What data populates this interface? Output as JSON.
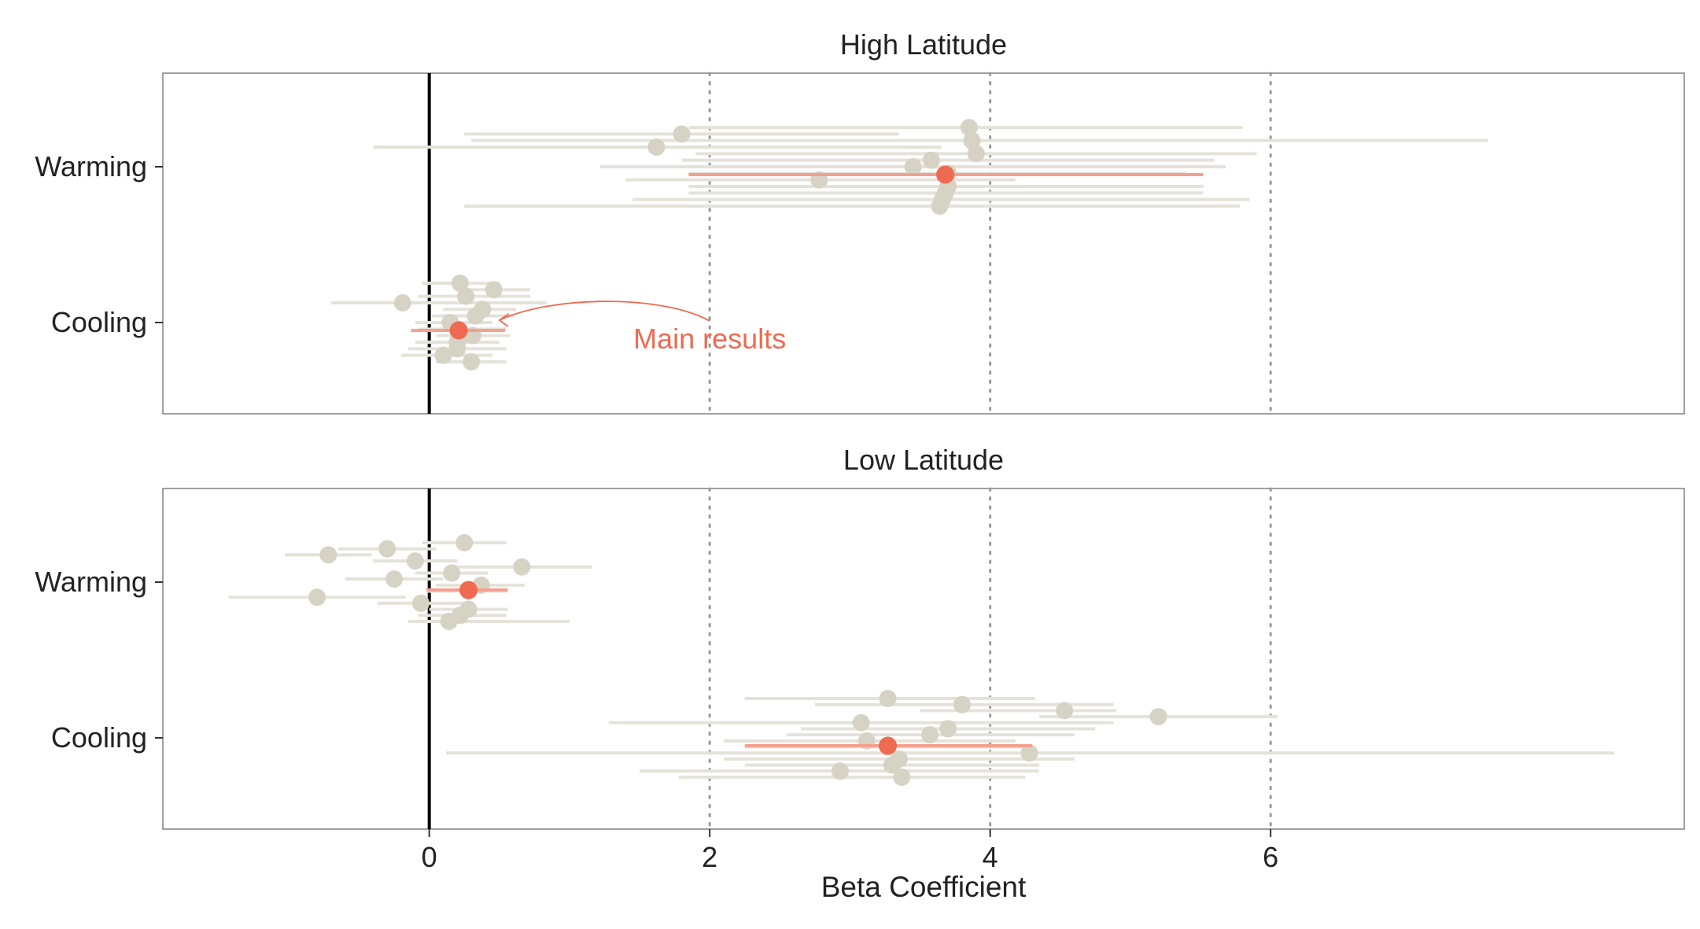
{
  "chart_data": {
    "type": "forest",
    "xlabel": "Beta Coefficient",
    "x_ticks": [
      0,
      2,
      4,
      6
    ],
    "x_range": [
      -1.9,
      8.95
    ],
    "reference_line": 0,
    "grid_lines": [
      2,
      4,
      6
    ],
    "categories": [
      "Warming",
      "Cooling"
    ],
    "annotation": {
      "text": "Main results",
      "color": "#ee6a50",
      "panel": "High Latitude",
      "category": "Cooling"
    },
    "colors": {
      "main": "#ee6a50",
      "main_line": "#f4a090",
      "robustness_point": "#d6d3c4",
      "robustness_line": "#e5e2d9",
      "zero_line": "#000000",
      "grid": "#999999",
      "frame": "#888888"
    },
    "panels": [
      {
        "title": "High Latitude",
        "groups": [
          {
            "category": "Warming",
            "main": {
              "estimate": 3.68,
              "lower": 1.85,
              "upper": 5.52
            },
            "estimates": [
              {
                "estimate": 3.85,
                "lower": 1.85,
                "upper": 5.8
              },
              {
                "estimate": 1.8,
                "lower": 0.25,
                "upper": 3.35
              },
              {
                "estimate": 3.87,
                "lower": 0.3,
                "upper": 7.55
              },
              {
                "estimate": 1.62,
                "lower": -0.4,
                "upper": 3.65
              },
              {
                "estimate": 3.9,
                "lower": 1.9,
                "upper": 5.9
              },
              {
                "estimate": 3.58,
                "lower": 1.8,
                "upper": 5.6
              },
              {
                "estimate": 3.45,
                "lower": 1.22,
                "upper": 5.68
              },
              {
                "estimate": 3.7,
                "lower": 1.85,
                "upper": 5.4
              },
              {
                "estimate": 2.78,
                "lower": 1.4,
                "upper": 4.18
              },
              {
                "estimate": 3.7,
                "lower": 1.85,
                "upper": 5.52
              },
              {
                "estimate": 3.68,
                "lower": 1.85,
                "upper": 5.52
              },
              {
                "estimate": 3.66,
                "lower": 1.45,
                "upper": 5.85
              },
              {
                "estimate": 3.64,
                "lower": 0.25,
                "upper": 5.78
              }
            ]
          },
          {
            "category": "Cooling",
            "main": {
              "estimate": 0.21,
              "lower": -0.13,
              "upper": 0.54
            },
            "estimates": [
              {
                "estimate": 0.22,
                "lower": -0.05,
                "upper": 0.5
              },
              {
                "estimate": 0.46,
                "lower": 0.2,
                "upper": 0.72
              },
              {
                "estimate": 0.26,
                "lower": -0.08,
                "upper": 0.72
              },
              {
                "estimate": -0.19,
                "lower": -0.7,
                "upper": 0.84
              },
              {
                "estimate": 0.38,
                "lower": 0.1,
                "upper": 0.62
              },
              {
                "estimate": 0.33,
                "lower": 0.02,
                "upper": 0.6
              },
              {
                "estimate": 0.15,
                "lower": -0.1,
                "upper": 0.45
              },
              {
                "estimate": 0.2,
                "lower": -0.08,
                "upper": 0.55
              },
              {
                "estimate": 0.31,
                "lower": 0.05,
                "upper": 0.58
              },
              {
                "estimate": 0.2,
                "lower": -0.1,
                "upper": 0.5
              },
              {
                "estimate": 0.2,
                "lower": -0.15,
                "upper": 0.55
              },
              {
                "estimate": 0.1,
                "lower": -0.2,
                "upper": 0.45
              },
              {
                "estimate": 0.3,
                "lower": 0.05,
                "upper": 0.55
              }
            ]
          }
        ]
      },
      {
        "title": "Low Latitude",
        "groups": [
          {
            "category": "Warming",
            "main": {
              "estimate": 0.28,
              "lower": -0.02,
              "upper": 0.56
            },
            "estimates": [
              {
                "estimate": 0.25,
                "lower": -0.05,
                "upper": 0.55
              },
              {
                "estimate": -0.3,
                "lower": -0.65,
                "upper": 0.05
              },
              {
                "estimate": -0.72,
                "lower": -1.03,
                "upper": -0.41
              },
              {
                "estimate": -0.1,
                "lower": -0.4,
                "upper": 0.2
              },
              {
                "estimate": 0.66,
                "lower": 0.15,
                "upper": 1.16
              },
              {
                "estimate": 0.16,
                "lower": -0.1,
                "upper": 0.42
              },
              {
                "estimate": -0.25,
                "lower": -0.6,
                "upper": 0.1
              },
              {
                "estimate": 0.37,
                "lower": 0.05,
                "upper": 0.68
              },
              {
                "estimate": 0.28,
                "lower": -0.02,
                "upper": 0.56
              },
              {
                "estimate": -0.8,
                "lower": -1.43,
                "upper": -0.17
              },
              {
                "estimate": -0.06,
                "lower": -0.37,
                "upper": 0.25
              },
              {
                "estimate": 0.28,
                "lower": 0.0,
                "upper": 0.56
              },
              {
                "estimate": 0.22,
                "lower": -0.08,
                "upper": 0.55
              },
              {
                "estimate": 0.14,
                "lower": -0.15,
                "upper": 1.0
              }
            ]
          },
          {
            "category": "Cooling",
            "main": {
              "estimate": 3.27,
              "lower": 2.25,
              "upper": 4.3
            },
            "estimates": [
              {
                "estimate": 3.27,
                "lower": 2.25,
                "upper": 4.32
              },
              {
                "estimate": 3.8,
                "lower": 2.75,
                "upper": 4.88
              },
              {
                "estimate": 4.53,
                "lower": 3.5,
                "upper": 4.9
              },
              {
                "estimate": 5.2,
                "lower": 4.35,
                "upper": 6.05
              },
              {
                "estimate": 3.08,
                "lower": 1.28,
                "upper": 4.88
              },
              {
                "estimate": 3.7,
                "lower": 2.65,
                "upper": 4.75
              },
              {
                "estimate": 3.57,
                "lower": 2.55,
                "upper": 4.6
              },
              {
                "estimate": 3.12,
                "lower": 2.1,
                "upper": 4.18
              },
              {
                "estimate": 3.27,
                "lower": 2.25,
                "upper": 4.3
              },
              {
                "estimate": 4.28,
                "lower": 0.12,
                "upper": 8.45
              },
              {
                "estimate": 3.35,
                "lower": 2.1,
                "upper": 4.6
              },
              {
                "estimate": 3.3,
                "lower": 2.25,
                "upper": 4.35
              },
              {
                "estimate": 2.93,
                "lower": 1.5,
                "upper": 4.35
              },
              {
                "estimate": 3.37,
                "lower": 1.78,
                "upper": 4.25
              }
            ]
          }
        ]
      }
    ]
  }
}
